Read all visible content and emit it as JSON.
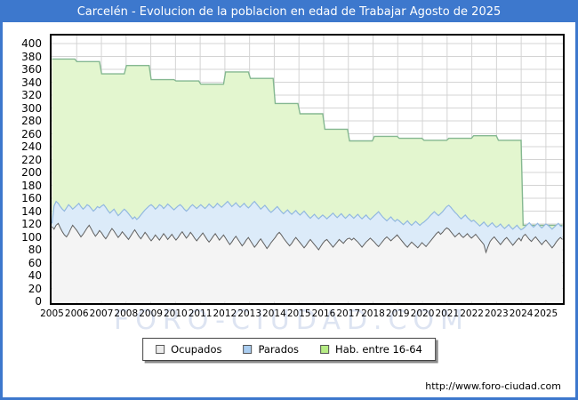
{
  "title": "Carcelén - Evolucion de la poblacion en edad de Trabajar Agosto de 2025",
  "watermark": "FORO-CIUDAD.COM",
  "footer_url": "http://www.foro-ciudad.com",
  "colors": {
    "frame_and_titlebar": "#3d78cd",
    "plot_border": "#000000",
    "grid": "#d4d4d4",
    "green_fill": "#e3f6cf",
    "green_line": "#85b891",
    "blue_fill": "#dcebf9",
    "blue_line": "#92b8e0",
    "gray_fill": "#f4f4f4",
    "gray_line": "#606060"
  },
  "legend": {
    "items": [
      {
        "label": "Ocupados",
        "swatch": "#ececec"
      },
      {
        "label": "Parados",
        "swatch": "#aacdf0"
      },
      {
        "label": "Hab. entre 16-64",
        "swatch": "#b6ec84"
      }
    ]
  },
  "chart_data": {
    "type": "area",
    "title": "Carcelén - Evolucion de la poblacion en edad de Trabajar Agosto de 2025",
    "xlabel": "",
    "ylabel": "",
    "grid": true,
    "legend_position": "bottom-center",
    "x_range": [
      "2005-01",
      "2025-08"
    ],
    "ylim": [
      0,
      415
    ],
    "y_ticks": [
      0,
      20,
      40,
      60,
      80,
      100,
      120,
      140,
      160,
      180,
      200,
      220,
      240,
      260,
      280,
      300,
      320,
      340,
      360,
      380,
      400
    ],
    "x_tick_labels": [
      "2005",
      "2006",
      "2007",
      "2008",
      "2009",
      "2010",
      "2011",
      "2012",
      "2013",
      "2014",
      "2015",
      "2016",
      "2017",
      "2018",
      "2019",
      "2020",
      "2021",
      "2022",
      "2023",
      "2024",
      "2025"
    ],
    "series": [
      {
        "name": "Hab. entre 16-64",
        "kind": "annual_step",
        "values_by_year": {
          "2005": 376,
          "2006": 372,
          "2007": 353,
          "2008": 366,
          "2009": 344,
          "2010": 342,
          "2011": 337,
          "2012": 356,
          "2013": 346,
          "2014": 307,
          "2015": 291,
          "2016": 267,
          "2017": 249,
          "2018": 256,
          "2019": 253,
          "2020": 250,
          "2021": 253,
          "2022": 257,
          "2023": 250,
          "2024": 118,
          "2025": 118
        }
      },
      {
        "name": "Parados",
        "kind": "monthly_top_line",
        "monthly_values": [
          121,
          148,
          155,
          152,
          147,
          143,
          140,
          145,
          150,
          147,
          143,
          146,
          149,
          152,
          147,
          143,
          146,
          150,
          148,
          144,
          140,
          143,
          147,
          145,
          148,
          150,
          146,
          141,
          137,
          140,
          143,
          138,
          133,
          136,
          140,
          143,
          140,
          136,
          132,
          128,
          131,
          127,
          130,
          134,
          138,
          142,
          145,
          148,
          150,
          147,
          143,
          146,
          150,
          148,
          144,
          147,
          151,
          148,
          145,
          142,
          145,
          148,
          150,
          147,
          143,
          140,
          143,
          147,
          150,
          147,
          144,
          147,
          150,
          147,
          144,
          147,
          151,
          148,
          145,
          148,
          152,
          149,
          146,
          149,
          152,
          155,
          151,
          147,
          150,
          153,
          149,
          146,
          149,
          152,
          148,
          145,
          148,
          152,
          155,
          151,
          147,
          143,
          146,
          149,
          145,
          141,
          138,
          141,
          144,
          147,
          143,
          139,
          136,
          139,
          142,
          138,
          135,
          138,
          141,
          137,
          134,
          137,
          140,
          136,
          132,
          129,
          132,
          135,
          131,
          128,
          131,
          134,
          131,
          128,
          131,
          134,
          137,
          133,
          130,
          133,
          136,
          132,
          129,
          132,
          135,
          132,
          129,
          132,
          135,
          131,
          128,
          131,
          134,
          130,
          127,
          130,
          133,
          136,
          139,
          135,
          131,
          128,
          125,
          128,
          131,
          127,
          124,
          127,
          125,
          122,
          119,
          122,
          125,
          121,
          118,
          121,
          124,
          121,
          118,
          121,
          123,
          126,
          129,
          133,
          136,
          139,
          136,
          133,
          136,
          139,
          143,
          147,
          149,
          146,
          142,
          138,
          135,
          131,
          128,
          131,
          134,
          130,
          127,
          124,
          126,
          123,
          120,
          117,
          120,
          123,
          119,
          116,
          119,
          122,
          118,
          115,
          117,
          120,
          116,
          113,
          116,
          119,
          115,
          112,
          115,
          118,
          114,
          111,
          113,
          116,
          119,
          122,
          118,
          115,
          118,
          121,
          117,
          114,
          117,
          120,
          118,
          115,
          112,
          115,
          118,
          121,
          117,
          116
        ]
      },
      {
        "name": "Ocupados",
        "kind": "monthly_top_line",
        "monthly_values": [
          116,
          112,
          118,
          121,
          114,
          108,
          103,
          100,
          105,
          112,
          118,
          114,
          110,
          105,
          100,
          104,
          109,
          114,
          118,
          112,
          106,
          101,
          105,
          110,
          106,
          101,
          97,
          102,
          108,
          113,
          109,
          104,
          99,
          103,
          108,
          104,
          100,
          96,
          101,
          106,
          111,
          106,
          101,
          97,
          102,
          107,
          103,
          98,
          94,
          98,
          103,
          99,
          95,
          100,
          105,
          101,
          96,
          100,
          104,
          99,
          95,
          99,
          104,
          108,
          103,
          98,
          102,
          107,
          103,
          98,
          94,
          98,
          102,
          106,
          101,
          96,
          92,
          96,
          101,
          105,
          100,
          95,
          99,
          103,
          98,
          93,
          88,
          92,
          97,
          101,
          96,
          91,
          86,
          90,
          95,
          99,
          94,
          89,
          84,
          88,
          93,
          97,
          92,
          87,
          82,
          86,
          91,
          95,
          99,
          104,
          107,
          103,
          98,
          94,
          90,
          86,
          90,
          95,
          99,
          95,
          91,
          87,
          83,
          87,
          92,
          96,
          92,
          88,
          84,
          80,
          85,
          90,
          94,
          96,
          92,
          88,
          84,
          88,
          92,
          96,
          93,
          90,
          94,
          97,
          98,
          95,
          98,
          95,
          92,
          88,
          84,
          88,
          92,
          95,
          98,
          95,
          92,
          88,
          85,
          89,
          93,
          97,
          100,
          97,
          94,
          97,
          100,
          103,
          99,
          95,
          91,
          87,
          84,
          88,
          92,
          89,
          86,
          83,
          87,
          91,
          88,
          85,
          89,
          93,
          97,
          101,
          105,
          108,
          104,
          107,
          111,
          114,
          112,
          108,
          104,
          100,
          103,
          106,
          102,
          99,
          102,
          105,
          101,
          98,
          101,
          104,
          100,
          96,
          92,
          88,
          76,
          85,
          93,
          97,
          100,
          96,
          92,
          88,
          92,
          96,
          99,
          95,
          91,
          87,
          91,
          95,
          98,
          94,
          101,
          104,
          100,
          96,
          93,
          97,
          100,
          96,
          92,
          88,
          92,
          95,
          91,
          87,
          83,
          87,
          92,
          96,
          99,
          96
        ]
      }
    ]
  }
}
